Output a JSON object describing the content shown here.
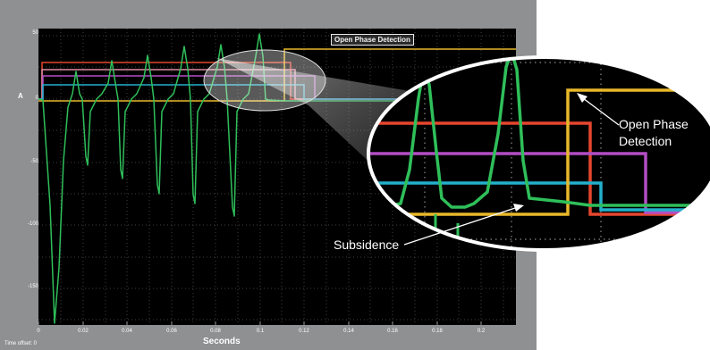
{
  "scope": {
    "badge": "Open Phase Detection",
    "y_unit": "A",
    "xlabel": "Seconds",
    "time_offset": "Time offset:  0",
    "y_ticks": [
      "50",
      "0",
      "-50",
      "-100",
      "-150"
    ],
    "x_ticks": [
      "0",
      "0.02",
      "0.04",
      "0.06",
      "0.08",
      "0.1",
      "0.12",
      "0.14",
      "0.16",
      "0.18",
      "0.2"
    ]
  },
  "callouts": {
    "open_phase_line1": "Open Phase",
    "open_phase_line2": "Detection",
    "subsidence": "Subsidence"
  },
  "colors": {
    "background": "#000000",
    "grid": "#3f3f3f",
    "current_trace": "#2fbf5a",
    "open_phase_signal": "#e8b82a",
    "signal_red": "#e5462e",
    "signal_pink": "#e08aa0",
    "signal_purple": "#b24ec4",
    "signal_cyan": "#22b0cc"
  }
}
